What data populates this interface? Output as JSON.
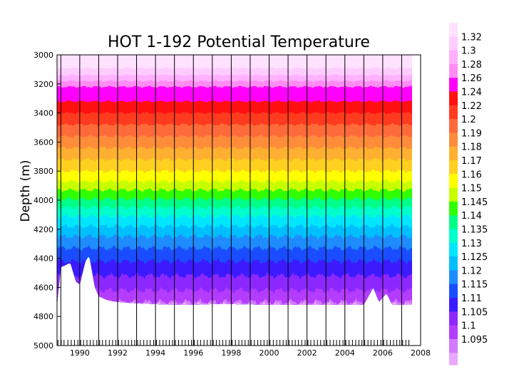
{
  "chart_data": {
    "type": "heatmap",
    "title": "HOT 1-192 Potential Temperature",
    "ylabel": "Depth (m)",
    "xlabel": "",
    "xlim": [
      1988.8,
      2008
    ],
    "ylim": [
      3000,
      5000
    ],
    "y_inverted": true,
    "x_ticks": [
      "1990",
      "1992",
      "1994",
      "1996",
      "1998",
      "2000",
      "2002",
      "2004",
      "2006",
      "2008"
    ],
    "y_ticks": [
      "3000",
      "3200",
      "3400",
      "3600",
      "3800",
      "4000",
      "4200",
      "4400",
      "4600",
      "4800",
      "5000"
    ],
    "cruise_markers_x": [
      1988.85,
      1989.02,
      1989.17,
      1989.37,
      1989.55,
      1989.72,
      1989.9,
      1990.05,
      1990.2,
      1990.38,
      1990.55,
      1990.72,
      1990.9,
      1991.05,
      1991.2,
      1991.38,
      1991.56,
      1991.73,
      1991.9,
      1992.05,
      1992.22,
      1992.4,
      1992.57,
      1992.74,
      1992.9,
      1993.05,
      1993.2,
      1993.38,
      1993.55,
      1993.72,
      1993.9,
      1994.05,
      1994.22,
      1994.4,
      1994.56,
      1994.73,
      1994.9,
      1995.05,
      1995.22,
      1995.4,
      1995.57,
      1995.74,
      1995.9,
      1996.05,
      1996.22,
      1996.38,
      1996.56,
      1996.73,
      1996.9,
      1997.05,
      1997.21,
      1997.38,
      1997.55,
      1997.72,
      1997.9,
      1998.05,
      1998.22,
      1998.4,
      1998.56,
      1998.73,
      1998.9,
      1999.05,
      1999.22,
      1999.4,
      1999.56,
      1999.73,
      1999.9,
      2000.05,
      2000.22,
      2000.4,
      2000.57,
      2000.74,
      2000.9,
      2001.05,
      2001.22,
      2001.38,
      2001.55,
      2001.72,
      2001.9,
      2002.05,
      2002.2,
      2002.38,
      2002.55,
      2002.72,
      2002.9,
      2003.05,
      2003.22,
      2003.4,
      2003.56,
      2003.73,
      2003.9,
      2004.05,
      2004.22,
      2004.4,
      2004.57,
      2004.74,
      2004.9,
      2005.05,
      2005.22,
      2005.38,
      2005.55,
      2005.72,
      2005.9,
      2006.05,
      2006.22,
      2006.4,
      2006.57,
      2006.74,
      2006.9,
      2007.05,
      2007.22,
      2007.38
    ],
    "profile_lines_x": [
      1989.0,
      1990.0,
      1991.0,
      1992.0,
      1993.0,
      1994.0,
      1995.0,
      1996.0,
      1997.0,
      1998.0,
      1999.0,
      2000.0,
      2001.0,
      2002.0,
      2003.0,
      2004.0,
      2005.0,
      2006.0,
      2007.0
    ],
    "data_end_x": 2007.55,
    "contour_levels": [
      {
        "label": "1.32",
        "color": "#ffccff",
        "depth": 3090
      },
      {
        "label": "1.3",
        "color": "#ffb0ff",
        "depth": 3140
      },
      {
        "label": "1.28",
        "color": "#ff8cf4",
        "depth": 3180
      },
      {
        "label": "1.26",
        "color": "#ff00ff",
        "depth": 3220
      },
      {
        "label": "1.24",
        "color": "#ff1010",
        "depth": 3320
      },
      {
        "label": "1.22",
        "color": "#ff3b1f",
        "depth": 3400
      },
      {
        "label": "1.2",
        "color": "#ff6a3a",
        "depth": 3480
      },
      {
        "label": "1.19",
        "color": "#ff8c3a",
        "depth": 3560
      },
      {
        "label": "1.18",
        "color": "#ffb030",
        "depth": 3640
      },
      {
        "label": "1.17",
        "color": "#ffd020",
        "depth": 3720
      },
      {
        "label": "1.16",
        "color": "#ffff00",
        "depth": 3800
      },
      {
        "label": "1.15",
        "color": "#c8ff00",
        "depth": 3870
      },
      {
        "label": "1.145",
        "color": "#30ff00",
        "depth": 3930
      },
      {
        "label": "1.14",
        "color": "#00ff88",
        "depth": 3990
      },
      {
        "label": "1.135",
        "color": "#00ffcc",
        "depth": 4050
      },
      {
        "label": "1.13",
        "color": "#00e6ff",
        "depth": 4110
      },
      {
        "label": "1.125",
        "color": "#00bfff",
        "depth": 4180
      },
      {
        "label": "1.12",
        "color": "#1e8cff",
        "depth": 4250
      },
      {
        "label": "1.115",
        "color": "#1a4dff",
        "depth": 4330
      },
      {
        "label": "1.11",
        "color": "#3c1aff",
        "depth": 4420
      },
      {
        "label": "1.105",
        "color": "#8c28ff",
        "depth": 4520
      },
      {
        "label": "1.1",
        "color": "#b43cff",
        "depth": 4620
      },
      {
        "label": "1.095",
        "color": "#d27aff",
        "depth": 4700
      },
      {
        "label": "",
        "color": "#e9a8ff",
        "depth": 4720
      }
    ],
    "bottom_depth": [
      {
        "x": 1988.8,
        "depth": 4720
      },
      {
        "x": 1989.0,
        "depth": 4460
      },
      {
        "x": 1989.2,
        "depth": 4450
      },
      {
        "x": 1989.5,
        "depth": 4430
      },
      {
        "x": 1989.8,
        "depth": 4560
      },
      {
        "x": 1990.0,
        "depth": 4580
      },
      {
        "x": 1990.3,
        "depth": 4420
      },
      {
        "x": 1990.5,
        "depth": 4380
      },
      {
        "x": 1990.8,
        "depth": 4600
      },
      {
        "x": 1991.0,
        "depth": 4660
      },
      {
        "x": 1991.5,
        "depth": 4690
      },
      {
        "x": 1992.0,
        "depth": 4700
      },
      {
        "x": 1993.0,
        "depth": 4710
      },
      {
        "x": 1994.0,
        "depth": 4715
      },
      {
        "x": 1995.0,
        "depth": 4720
      },
      {
        "x": 1996.0,
        "depth": 4720
      },
      {
        "x": 1997.0,
        "depth": 4715
      },
      {
        "x": 1998.0,
        "depth": 4715
      },
      {
        "x": 1999.0,
        "depth": 4718
      },
      {
        "x": 2000.0,
        "depth": 4720
      },
      {
        "x": 2001.0,
        "depth": 4720
      },
      {
        "x": 2002.0,
        "depth": 4720
      },
      {
        "x": 2003.0,
        "depth": 4720
      },
      {
        "x": 2004.0,
        "depth": 4720
      },
      {
        "x": 2005.0,
        "depth": 4720
      },
      {
        "x": 2005.5,
        "depth": 4600
      },
      {
        "x": 2005.8,
        "depth": 4700
      },
      {
        "x": 2006.2,
        "depth": 4640
      },
      {
        "x": 2006.5,
        "depth": 4720
      },
      {
        "x": 2007.55,
        "depth": 4720
      }
    ],
    "grid": false,
    "colorbar": "right"
  }
}
